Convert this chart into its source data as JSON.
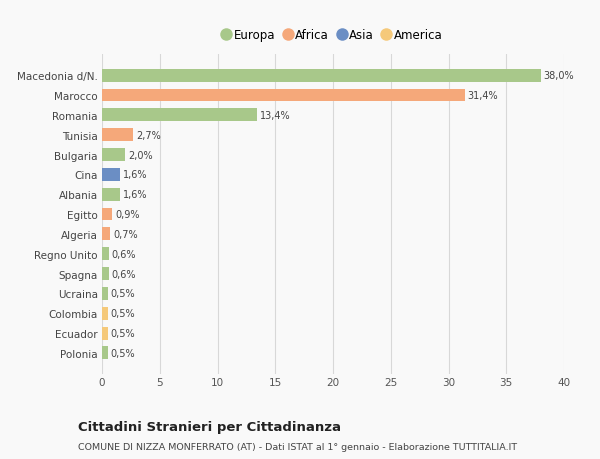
{
  "categories": [
    "Polonia",
    "Ecuador",
    "Colombia",
    "Ucraina",
    "Spagna",
    "Regno Unito",
    "Algeria",
    "Egitto",
    "Albania",
    "Cina",
    "Bulgaria",
    "Tunisia",
    "Romania",
    "Marocco",
    "Macedonia d/N."
  ],
  "values": [
    0.5,
    0.5,
    0.5,
    0.5,
    0.6,
    0.6,
    0.7,
    0.9,
    1.6,
    1.6,
    2.0,
    2.7,
    13.4,
    31.4,
    38.0
  ],
  "colors": [
    "#a8c88a",
    "#f5c97a",
    "#f5c97a",
    "#a8c88a",
    "#a8c88a",
    "#a8c88a",
    "#f5a87a",
    "#f5a87a",
    "#a8c88a",
    "#6b8ec4",
    "#a8c88a",
    "#f5a87a",
    "#a8c88a",
    "#f5a87a",
    "#a8c88a"
  ],
  "labels": [
    "0,5%",
    "0,5%",
    "0,5%",
    "0,5%",
    "0,6%",
    "0,6%",
    "0,7%",
    "0,9%",
    "1,6%",
    "1,6%",
    "2,0%",
    "2,7%",
    "13,4%",
    "31,4%",
    "38,0%"
  ],
  "legend": {
    "Europa": "#a8c88a",
    "Africa": "#f5a87a",
    "Asia": "#6b8ec4",
    "America": "#f5c97a"
  },
  "title": "Cittadini Stranieri per Cittadinanza",
  "subtitle": "COMUNE DI NIZZA MONFERRATO (AT) - Dati ISTAT al 1° gennaio - Elaborazione TUTTITALIA.IT",
  "xlim": [
    0,
    40
  ],
  "xticks": [
    0,
    5,
    10,
    15,
    20,
    25,
    30,
    35,
    40
  ],
  "background_color": "#f9f9f9",
  "grid_color": "#d8d8d8",
  "bar_height": 0.65
}
